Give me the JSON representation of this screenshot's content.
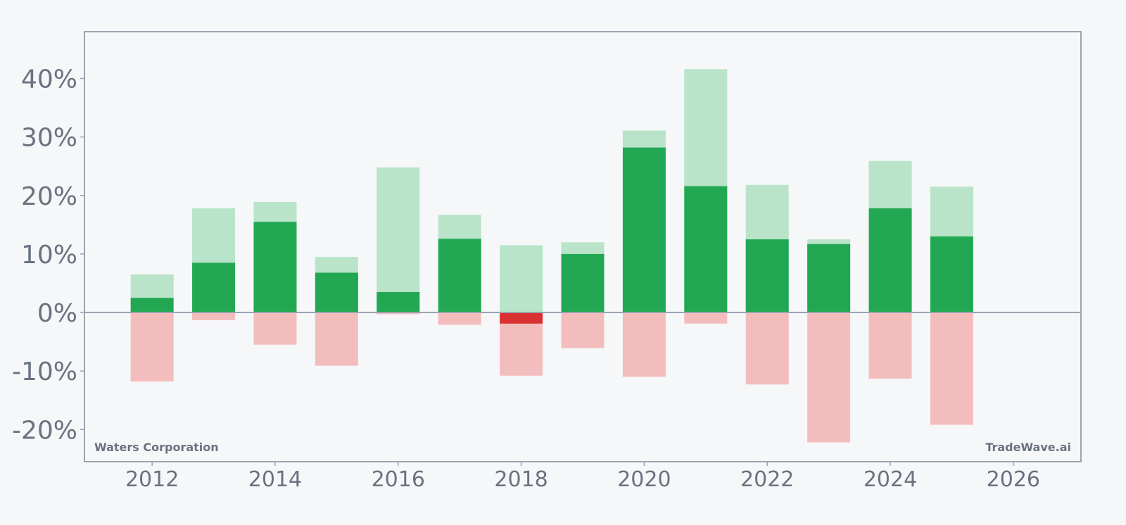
{
  "chart_data": {
    "type": "bar",
    "x": [
      2012,
      2013,
      2014,
      2015,
      2016,
      2017,
      2018,
      2019,
      2020,
      2021,
      2022,
      2023,
      2024,
      2025
    ],
    "series": [
      {
        "role": "year-high",
        "values": [
          6.5,
          17.8,
          18.9,
          9.5,
          24.8,
          16.7,
          11.5,
          12.0,
          31.1,
          41.6,
          21.8,
          12.5,
          25.9,
          21.5
        ]
      },
      {
        "role": "year-return",
        "values": [
          2.5,
          8.5,
          15.5,
          6.8,
          3.5,
          12.6,
          -1.9,
          10.0,
          28.2,
          21.6,
          12.5,
          11.7,
          17.8,
          13.0
        ]
      },
      {
        "role": "year-low",
        "values": [
          -11.8,
          -1.3,
          -5.5,
          -9.1,
          -0.3,
          -2.1,
          -10.8,
          -6.1,
          -11.0,
          -1.9,
          -12.3,
          -22.2,
          -11.3,
          -19.2
        ]
      }
    ],
    "yticks": [
      -20,
      -10,
      0,
      10,
      20,
      30,
      40
    ],
    "ytick_labels": [
      "-20%",
      "-10%",
      "0%",
      "10%",
      "20%",
      "30%",
      "40%"
    ],
    "xticks": [
      2012,
      2014,
      2016,
      2018,
      2020,
      2022,
      2024,
      2026
    ],
    "xtick_labels": [
      "2012",
      "2014",
      "2016",
      "2018",
      "2020",
      "2022",
      "2024",
      "2026"
    ],
    "xlim": [
      2010.9,
      2027.1
    ],
    "ylim": [
      -25.5,
      48
    ],
    "grid": false,
    "colors": {
      "positive": "#22a853",
      "positive_light": "#b9e4c9",
      "negative": "#d93030",
      "negative_light": "#f4bdbd",
      "axis": "#9ca3af",
      "text": "#6b7280",
      "background": "#f5f7f9"
    }
  },
  "watermark": {
    "left": "Waters Corporation",
    "right": "TradeWave.ai"
  }
}
